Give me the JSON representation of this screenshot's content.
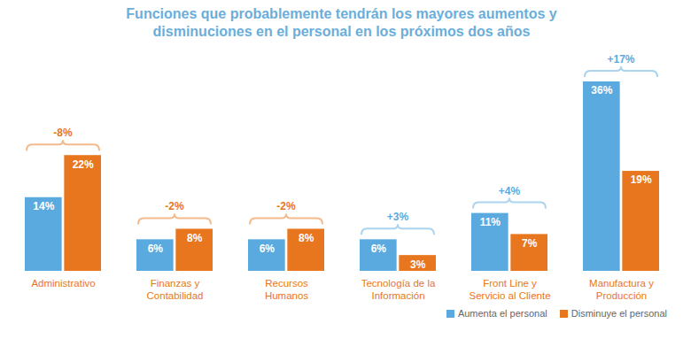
{
  "chart_data": {
    "type": "bar",
    "title": "Funciones que probablemente tendrán los mayores aumentos y disminuciones en el personal en los próximos dos años",
    "categories": [
      "Administrativo",
      "Finanzas y\nContabilidad",
      "Recursos\nHumanos",
      "Tecnología de la\nInformación",
      "Front Line y\nServicio al Cliente",
      "Manufactura y\nProducción"
    ],
    "series": [
      {
        "name": "Aumenta el personal",
        "color": "#5aaadf",
        "values": [
          14,
          6,
          6,
          6,
          11,
          36
        ],
        "value_labels": [
          "14%",
          "6%",
          "6%",
          "6%",
          "11%",
          "36%"
        ]
      },
      {
        "name": "Disminuye el personal",
        "color": "#e8761e",
        "values": [
          22,
          8,
          8,
          3,
          7,
          19
        ],
        "value_labels": [
          "22%",
          "8%",
          "8%",
          "3%",
          "7%",
          "19%"
        ]
      }
    ],
    "differences": [
      -8,
      -2,
      -2,
      3,
      4,
      17
    ],
    "difference_labels": [
      "-8%",
      "-2%",
      "-2%",
      "+3%",
      "+4%",
      "+17%"
    ],
    "ylim": [
      0,
      36
    ],
    "yticks": [],
    "tick_labels": "x",
    "data_labels": true,
    "grid": false,
    "legend": "bottom-right"
  }
}
